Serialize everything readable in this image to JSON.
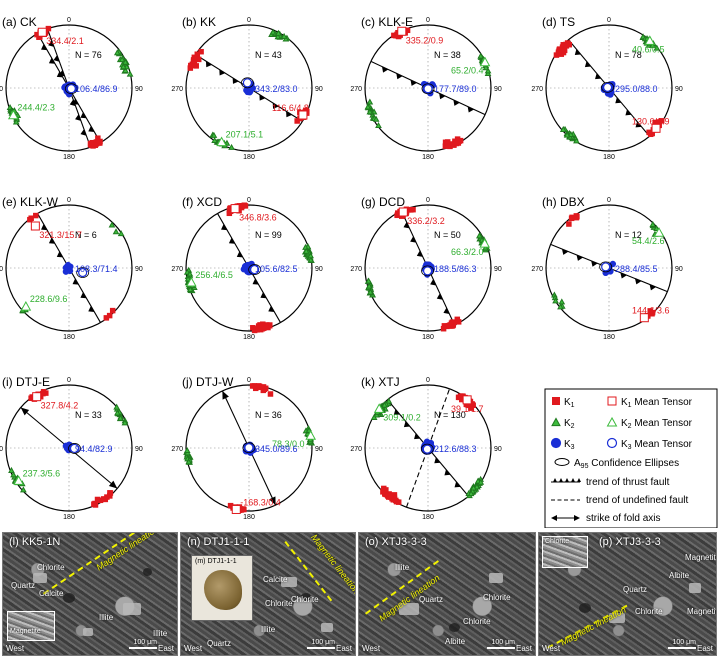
{
  "colors": {
    "k1": "#e0191e",
    "k2": "#3dbb3d",
    "k3": "#1a2fd6",
    "k1_text": "#e0191e",
    "k2_text": "#2fae2f",
    "k3_text": "#1a2fd6",
    "line": "#000000",
    "tick_grey": "#888888"
  },
  "tick_labels": {
    "north": "0",
    "east": "90",
    "south": "180",
    "west": "270"
  },
  "chart_data": [
    {
      "id": "a",
      "type": "scatter",
      "projection": "lower-hemisphere equal-area stereonet",
      "title": "(a) CK",
      "n_label": "N = 76",
      "k1_mean": {
        "label": "334.4/2.1",
        "trend": 334.4,
        "plunge": 2.1
      },
      "k2_mean": {
        "label": "244.4/2.3",
        "trend": 244.4,
        "plunge": 2.3
      },
      "k3_mean": {
        "label": "106.4/86.9",
        "trend": 106.4,
        "plunge": 86.9
      },
      "structure": {
        "kind": "thrust",
        "strike": 150,
        "dip_side": "east"
      },
      "structure2": {
        "kind": "thrust",
        "strike": 160,
        "dip_side": "east"
      },
      "scatter": {
        "k1": 38,
        "k2": 36,
        "k3": 60
      }
    },
    {
      "id": "b",
      "type": "scatter",
      "projection": "lower-hemisphere equal-area stereonet",
      "title": "(b) KK",
      "n_label": "N = 43",
      "k1_mean": {
        "label": "116.6/4.8",
        "trend": 116.6,
        "plunge": 4.8
      },
      "k2_mean": {
        "label": "207.1/5.1",
        "trend": 207.1,
        "plunge": 5.1
      },
      "k3_mean": {
        "label": "343.2/83.0",
        "trend": 343.2,
        "plunge": 83.0
      },
      "structure": {
        "kind": "thrust",
        "strike": 122,
        "dip_side": "south"
      },
      "scatter": {
        "k1": 26,
        "k2": 26,
        "k3": 30
      }
    },
    {
      "id": "c",
      "type": "scatter",
      "projection": "lower-hemisphere equal-area stereonet",
      "title": "(c) KLK-E",
      "n_label": "N = 38",
      "k1_mean": {
        "label": "335.2/0.9",
        "trend": 335.2,
        "plunge": 0.9
      },
      "k2_mean": {
        "label": "65.2/0.4",
        "trend": 65.2,
        "plunge": 0.4
      },
      "k3_mean": {
        "label": "177.7/89.0",
        "trend": 177.7,
        "plunge": 89.0
      },
      "structure": {
        "kind": "thrust",
        "strike": 115,
        "dip_side": "south"
      },
      "scatter": {
        "k1": 30,
        "k2": 30,
        "k3": 26
      }
    },
    {
      "id": "d",
      "type": "scatter",
      "projection": "lower-hemisphere equal-area stereonet",
      "title": "(d) TS",
      "n_label": "N = 78",
      "k1_mean": {
        "label": "130.6/1.9",
        "trend": 130.6,
        "plunge": 1.9
      },
      "k2_mean": {
        "label": "40.6/0.5",
        "trend": 40.6,
        "plunge": 0.5
      },
      "k3_mean": {
        "label": "295.0/88.0",
        "trend": 295.0,
        "plunge": 88.0
      },
      "structure": {
        "kind": "thrust",
        "strike": 140,
        "dip_side": "east"
      },
      "scatter": {
        "k1": 42,
        "k2": 36,
        "k3": 40
      }
    },
    {
      "id": "e",
      "type": "scatter",
      "projection": "lower-hemisphere equal-area stereonet",
      "title": "(e) KLK-W",
      "n_label": "N = 6",
      "k1_mean": {
        "label": "321.3/15.7",
        "trend": 321.3,
        "plunge": 15.7
      },
      "k2_mean": {
        "label": "228.6/9.6",
        "trend": 228.6,
        "plunge": 9.6
      },
      "k3_mean": {
        "label": "108.3/71.4",
        "trend": 108.3,
        "plunge": 71.4
      },
      "structure": {
        "kind": "thrust",
        "strike": 150,
        "dip_side": "east"
      },
      "scatter": {
        "k1": 6,
        "k2": 6,
        "k3": 6
      }
    },
    {
      "id": "f",
      "type": "scatter",
      "projection": "lower-hemisphere equal-area stereonet",
      "title": "(f) XCD",
      "n_label": "N = 99",
      "k1_mean": {
        "label": "346.8/3.6",
        "trend": 346.8,
        "plunge": 3.6
      },
      "k2_mean": {
        "label": "256.4/6.5",
        "trend": 256.4,
        "plunge": 6.5
      },
      "k3_mean": {
        "label": "105.6/82.5",
        "trend": 105.6,
        "plunge": 82.5
      },
      "structure": {
        "kind": "thrust",
        "strike": 150,
        "dip_side": "east"
      },
      "scatter": {
        "k1": 60,
        "k2": 50,
        "k3": 80
      }
    },
    {
      "id": "g",
      "type": "scatter",
      "projection": "lower-hemisphere equal-area stereonet",
      "title": "(g) DCD",
      "n_label": "N = 50",
      "k1_mean": {
        "label": "336.2/3.2",
        "trend": 336.2,
        "plunge": 3.2
      },
      "k2_mean": {
        "label": "66.3/2.0",
        "trend": 66.3,
        "plunge": 2.0
      },
      "k3_mean": {
        "label": "188.5/86.3",
        "trend": 188.5,
        "plunge": 86.3
      },
      "structure": {
        "kind": "thrust",
        "strike": 155,
        "dip_side": "east"
      },
      "scatter": {
        "k1": 30,
        "k2": 32,
        "k3": 34
      }
    },
    {
      "id": "h",
      "type": "scatter",
      "projection": "lower-hemisphere equal-area stereonet",
      "title": "(h) DBX",
      "n_label": "N = 12",
      "k1_mean": {
        "label": "144.6/3.6",
        "trend": 144.6,
        "plunge": 3.6
      },
      "k2_mean": {
        "label": "54.4/2.6",
        "trend": 54.4,
        "plunge": 2.6
      },
      "k3_mean": {
        "label": "288.4/85.5",
        "trend": 288.4,
        "plunge": 85.5
      },
      "structure": {
        "kind": "thrust",
        "strike": 112,
        "dip_side": "south"
      },
      "scatter": {
        "k1": 12,
        "k2": 12,
        "k3": 12
      }
    },
    {
      "id": "i",
      "type": "scatter",
      "projection": "lower-hemisphere equal-area stereonet",
      "title": "(i) DTJ-E",
      "n_label": "N = 33",
      "k1_mean": {
        "label": "327.8/4.2",
        "trend": 327.8,
        "plunge": 4.2
      },
      "k2_mean": {
        "label": "237.3/5.6",
        "trend": 237.3,
        "plunge": 5.6
      },
      "k3_mean": {
        "label": "94.4/82.9",
        "trend": 94.4,
        "plunge": 82.9
      },
      "structure": {
        "kind": "fold",
        "strike": 130
      },
      "scatter": {
        "k1": 22,
        "k2": 24,
        "k3": 26
      }
    },
    {
      "id": "j",
      "type": "scatter",
      "projection": "lower-hemisphere equal-area stereonet",
      "title": "(j) DTJ-W",
      "n_label": "N = 36",
      "k1_mean": {
        "label": "-168.3/0.4",
        "trend": -168.3,
        "plunge": 0.4
      },
      "k2_mean": {
        "label": "78.3/0.0",
        "trend": 78.3,
        "plunge": 0.0
      },
      "k3_mean": {
        "label": "345.0/89.6",
        "trend": 345.0,
        "plunge": 89.6
      },
      "structure": {
        "kind": "fold",
        "strike": 155
      },
      "scatter": {
        "k1": 26,
        "k2": 26,
        "k3": 26
      }
    },
    {
      "id": "k",
      "type": "scatter",
      "projection": "lower-hemisphere equal-area stereonet",
      "title": "(k) XTJ",
      "n_label": "N = 130",
      "k1_mean": {
        "label": "39.1/1.7",
        "trend": 39.1,
        "plunge": 1.7
      },
      "k2_mean": {
        "label": "309.1/0.2",
        "trend": 309.1,
        "plunge": 0.2
      },
      "k3_mean": {
        "label": "212.6/88.3",
        "trend": 212.6,
        "plunge": 88.3
      },
      "structure": {
        "kind": "thrust",
        "strike": 140,
        "dip_side": "east"
      },
      "structure2": {
        "kind": "undefined",
        "strike": 20
      },
      "scatter": {
        "k1": 70,
        "k2": 60,
        "k3": 80
      }
    }
  ],
  "legend": {
    "k1": {
      "main": "K",
      "sub": "1"
    },
    "k1_mean": {
      "main": "K",
      "sub": "1",
      "suffix": " Mean Tensor"
    },
    "k2": {
      "main": "K",
      "sub": "2"
    },
    "k2_mean": {
      "main": "K",
      "sub": "2",
      "suffix": " Mean Tensor"
    },
    "k3": {
      "main": "K",
      "sub": "3"
    },
    "k3_mean": {
      "main": "K",
      "sub": "3",
      "suffix": " Mean Tensor"
    },
    "ellipses": {
      "main": "A",
      "sub": "95",
      "suffix": " Confidence Ellipses"
    },
    "thrust": "trend of thrust fault",
    "undefined": "trend of undefined fault",
    "fold": "strike of fold axis"
  },
  "micrographs": [
    {
      "title": "(l) KK5-1N",
      "lineation": "Magnetic lineation",
      "west": "West",
      "east": "East",
      "scale": "100 μm",
      "labels": [
        "Chlorite",
        "Quartz",
        "Calcite",
        "Illite",
        "Illite",
        "Magnetite"
      ]
    },
    {
      "title": "(n) DTJ1-1-1",
      "lineation": "Magnetic lineation",
      "west": "West",
      "east": "East",
      "scale": "100 μm",
      "inset": "(m) DTJ1-1-1",
      "labels": [
        "Calcite",
        "Chlorite",
        "Illite",
        "Quartz",
        "Chlorite"
      ]
    },
    {
      "title": "(o) XTJ3-3-3",
      "lineation": "Magnetic lineation",
      "west": "West",
      "east": "East",
      "scale": "100 μm",
      "labels": [
        "Illite",
        "Quartz",
        "Chlorite",
        "Chlorite",
        "Albite"
      ]
    },
    {
      "title": "(p) XTJ3-3-3",
      "lineation": "Magnetic lineation",
      "west": "West",
      "east": "East",
      "scale": "100 μm",
      "labels": [
        "Chlorite",
        "Magnetite",
        "Albite",
        "Quartz",
        "Chlorite",
        "Magnetite"
      ]
    }
  ]
}
